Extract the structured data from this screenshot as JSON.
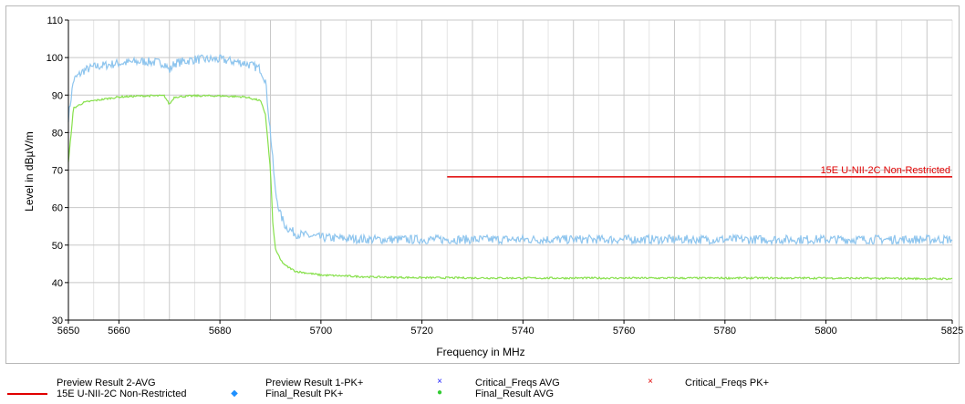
{
  "chart_data": {
    "type": "line",
    "title": "",
    "xlabel": "Frequency in MHz",
    "ylabel": "Level in dBµV/m",
    "xlim": [
      5650,
      5825
    ],
    "ylim": [
      30,
      110
    ],
    "x_ticks": [
      5650,
      5660,
      5680,
      5700,
      5720,
      5740,
      5760,
      5780,
      5800,
      5825
    ],
    "y_ticks": [
      30,
      40,
      50,
      60,
      70,
      80,
      90,
      100,
      110
    ],
    "grid": true,
    "series": [
      {
        "name": "Preview Result 1-PK+",
        "color": "#8ec5ee",
        "noise": 1.2,
        "x": [
          5650,
          5651,
          5653,
          5655,
          5660,
          5665,
          5669,
          5670,
          5671,
          5675,
          5680,
          5685,
          5688,
          5689,
          5690,
          5691,
          5692,
          5693,
          5695,
          5700,
          5710,
          5720,
          5740,
          5760,
          5780,
          5800,
          5825
        ],
        "y": [
          84,
          94,
          96.5,
          97.5,
          98.5,
          99,
          98.5,
          96.5,
          98.5,
          99.5,
          99.5,
          98.5,
          97,
          94,
          80,
          64,
          58,
          55,
          53,
          52,
          51.5,
          51.5,
          51.5,
          51.5,
          51.5,
          51.5,
          51.5
        ]
      },
      {
        "name": "Preview Result 2-AVG",
        "color": "#86e04a",
        "noise": 0.25,
        "x": [
          5650,
          5651,
          5653,
          5655,
          5660,
          5665,
          5669,
          5670,
          5671,
          5675,
          5680,
          5685,
          5688,
          5689,
          5690,
          5690.5,
          5691,
          5692,
          5693,
          5695,
          5700,
          5710,
          5720,
          5740,
          5760,
          5780,
          5800,
          5825
        ],
        "y": [
          72,
          86.5,
          88,
          88.5,
          89.5,
          89.8,
          89.8,
          87.5,
          89.5,
          89.8,
          89.8,
          89.5,
          88.5,
          85,
          70,
          55,
          49,
          46,
          44.5,
          43,
          42,
          41.5,
          41.3,
          41.2,
          41.2,
          41.2,
          41.2,
          41
        ]
      }
    ],
    "limit_line": {
      "name": "15E U-NII-2C Non-Restricted",
      "x": [
        5725,
        5825
      ],
      "y": 68.2,
      "color": "#e00000"
    }
  },
  "legend": [
    {
      "label": "Preview Result 2-AVG",
      "symbol": "",
      "color": "#c00000"
    },
    {
      "label": "15E U-NII-2C Non-Restricted",
      "symbol": "line",
      "color": "#e00000"
    },
    {
      "label": "Preview Result 1-PK+",
      "symbol": "",
      "color": "#1e90ff"
    },
    {
      "label": "Final_Result PK+",
      "symbol": "◆",
      "color": "#1e90ff"
    },
    {
      "label": "Critical_Freqs AVG",
      "symbol": "×",
      "color": "#1a1aff"
    },
    {
      "label": "Final_Result AVG",
      "symbol": "●",
      "color": "#33cc33"
    },
    {
      "label": "Critical_Freqs PK+",
      "symbol": "×",
      "color": "#e00000"
    }
  ]
}
